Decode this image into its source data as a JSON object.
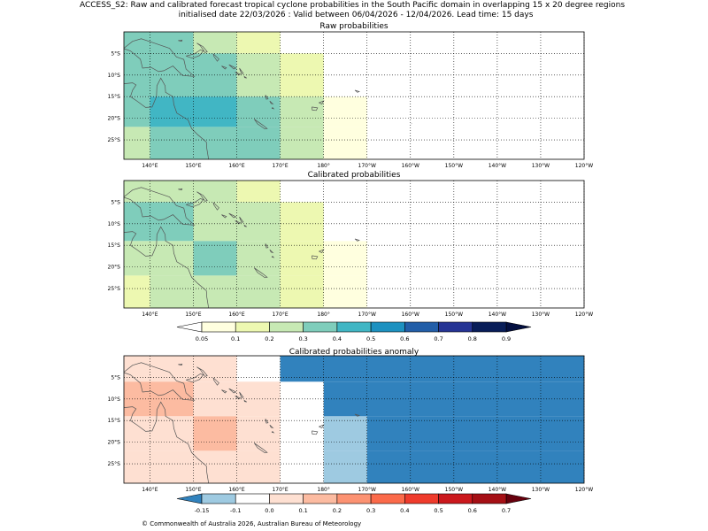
{
  "figure": {
    "title_line1": "ACCESS_S2: Raw and calibrated forecast tropical cyclone probabilities in the South Pacific domain in overlapping 15 x 20 degree regions",
    "title_line2": "initialised date 22/03/2026 :  Valid between 06/04/2026 - 12/04/2026. Lead time: 15 days",
    "copyright": "© Commonwealth of Australia 2026, Australian Bureau of Meteorology"
  },
  "axes": {
    "lon_ticks": [
      "140°E",
      "150°E",
      "160°E",
      "170°E",
      "180°",
      "170°W",
      "160°W",
      "150°W",
      "140°W",
      "130°W",
      "120°W"
    ],
    "lat_ticks": [
      "5°S",
      "10°S",
      "15°S",
      "20°S",
      "25°S"
    ],
    "lon_values": [
      140,
      150,
      160,
      170,
      180,
      190,
      200,
      210,
      220,
      230,
      240
    ],
    "lat_values": [
      -5,
      -10,
      -15,
      -20,
      -25
    ],
    "xlim": [
      134,
      240
    ],
    "ylim": [
      -29.5,
      0
    ],
    "grid": "dotted"
  },
  "chart_data": [
    {
      "type": "heatmap",
      "title": "Raw probabilities",
      "colorscale": "prob",
      "cells": [
        {
          "lon": [
            134,
            150
          ],
          "lat": [
            -10,
            0
          ],
          "value": 0.35
        },
        {
          "lon": [
            150,
            160
          ],
          "lat": [
            -10,
            0
          ],
          "value": 0.25
        },
        {
          "lon": [
            160,
            170
          ],
          "lat": [
            -5,
            0
          ],
          "value": 0.15
        },
        {
          "lon": [
            134,
            160
          ],
          "lat": [
            -15,
            -5
          ],
          "value": 0.35
        },
        {
          "lon": [
            160,
            170
          ],
          "lat": [
            -15,
            -5
          ],
          "value": 0.25
        },
        {
          "lon": [
            170,
            180
          ],
          "lat": [
            -15,
            -5
          ],
          "value": 0.15
        },
        {
          "lon": [
            134,
            140
          ],
          "lat": [
            -22,
            -15
          ],
          "value": 0.35
        },
        {
          "lon": [
            140,
            160
          ],
          "lat": [
            -22,
            -15
          ],
          "value": 0.45
        },
        {
          "lon": [
            160,
            170
          ],
          "lat": [
            -22,
            -15
          ],
          "value": 0.35
        },
        {
          "lon": [
            170,
            180
          ],
          "lat": [
            -22,
            -15
          ],
          "value": 0.25
        },
        {
          "lon": [
            180,
            190
          ],
          "lat": [
            -22,
            -15
          ],
          "value": 0.08
        },
        {
          "lon": [
            134,
            140
          ],
          "lat": [
            -29.5,
            -22
          ],
          "value": 0.25
        },
        {
          "lon": [
            140,
            170
          ],
          "lat": [
            -29.5,
            -22
          ],
          "value": 0.35
        },
        {
          "lon": [
            170,
            180
          ],
          "lat": [
            -29.5,
            -22
          ],
          "value": 0.25
        },
        {
          "lon": [
            180,
            190
          ],
          "lat": [
            -29.5,
            -22
          ],
          "value": 0.08
        }
      ]
    },
    {
      "type": "heatmap",
      "title": "Calibrated probabilities",
      "colorscale": "prob",
      "cells": [
        {
          "lon": [
            134,
            160
          ],
          "lat": [
            -5,
            0
          ],
          "value": 0.25
        },
        {
          "lon": [
            160,
            170
          ],
          "lat": [
            -5,
            0
          ],
          "value": 0.15
        },
        {
          "lon": [
            134,
            150
          ],
          "lat": [
            -14,
            -5
          ],
          "value": 0.35
        },
        {
          "lon": [
            150,
            170
          ],
          "lat": [
            -14,
            -5
          ],
          "value": 0.25
        },
        {
          "lon": [
            170,
            180
          ],
          "lat": [
            -14,
            -5
          ],
          "value": 0.15
        },
        {
          "lon": [
            134,
            150
          ],
          "lat": [
            -22,
            -14
          ],
          "value": 0.25
        },
        {
          "lon": [
            150,
            160
          ],
          "lat": [
            -22,
            -14
          ],
          "value": 0.35
        },
        {
          "lon": [
            160,
            170
          ],
          "lat": [
            -22,
            -14
          ],
          "value": 0.25
        },
        {
          "lon": [
            170,
            180
          ],
          "lat": [
            -22,
            -14
          ],
          "value": 0.15
        },
        {
          "lon": [
            180,
            190
          ],
          "lat": [
            -22,
            -14
          ],
          "value": 0.08
        },
        {
          "lon": [
            134,
            140
          ],
          "lat": [
            -29.5,
            -22
          ],
          "value": 0.15
        },
        {
          "lon": [
            140,
            170
          ],
          "lat": [
            -29.5,
            -22
          ],
          "value": 0.25
        },
        {
          "lon": [
            170,
            180
          ],
          "lat": [
            -29.5,
            -22
          ],
          "value": 0.15
        },
        {
          "lon": [
            180,
            190
          ],
          "lat": [
            -29.5,
            -22
          ],
          "value": 0.08
        }
      ]
    },
    {
      "type": "heatmap",
      "title": "Calibrated probabilities anomaly",
      "colorscale": "anom",
      "cells": [
        {
          "lon": [
            134,
            160
          ],
          "lat": [
            -6,
            0
          ],
          "value": 0.05
        },
        {
          "lon": [
            170,
            240
          ],
          "lat": [
            -6,
            0
          ],
          "value": -0.2
        },
        {
          "lon": [
            134,
            150
          ],
          "lat": [
            -14,
            -6
          ],
          "value": 0.15
        },
        {
          "lon": [
            150,
            170
          ],
          "lat": [
            -14,
            -6
          ],
          "value": 0.05
        },
        {
          "lon": [
            180,
            240
          ],
          "lat": [
            -14,
            -6
          ],
          "value": -0.2
        },
        {
          "lon": [
            134,
            150
          ],
          "lat": [
            -22,
            -14
          ],
          "value": 0.05
        },
        {
          "lon": [
            150,
            160
          ],
          "lat": [
            -22,
            -14
          ],
          "value": 0.15
        },
        {
          "lon": [
            160,
            170
          ],
          "lat": [
            -22,
            -14
          ],
          "value": 0.05
        },
        {
          "lon": [
            180,
            190
          ],
          "lat": [
            -22,
            -14
          ],
          "value": -0.12
        },
        {
          "lon": [
            190,
            240
          ],
          "lat": [
            -22,
            -14
          ],
          "value": -0.2
        },
        {
          "lon": [
            134,
            170
          ],
          "lat": [
            -29.5,
            -22
          ],
          "value": 0.05
        },
        {
          "lon": [
            180,
            190
          ],
          "lat": [
            -29.5,
            -22
          ],
          "value": -0.12
        },
        {
          "lon": [
            190,
            240
          ],
          "lat": [
            -29.5,
            -22
          ],
          "value": -0.2
        }
      ]
    }
  ],
  "colorbars": {
    "prob": {
      "bounds": [
        0.05,
        0.1,
        0.2,
        0.3,
        0.4,
        0.5,
        0.6,
        0.7,
        0.8,
        0.9
      ],
      "tick_labels": [
        "0.05",
        "0.1",
        "0.2",
        "0.3",
        "0.4",
        "0.5",
        "0.6",
        "0.7",
        "0.8",
        "0.9"
      ],
      "colors": [
        "#ffffdf",
        "#edf8b1",
        "#c7e9b4",
        "#7fcdbb",
        "#41b6c4",
        "#1d91c0",
        "#225ea8",
        "#253494",
        "#081d58"
      ],
      "under_color": "#ffffff",
      "over_color": "#030f40"
    },
    "anom": {
      "bounds": [
        -0.15,
        -0.1,
        0.0,
        0.1,
        0.2,
        0.3,
        0.4,
        0.5,
        0.6,
        0.7
      ],
      "tick_labels": [
        "-0.15",
        "-0.1",
        "0.0",
        "0.1",
        "0.2",
        "0.3",
        "0.4",
        "0.5",
        "0.6",
        "0.7"
      ],
      "colors": [
        "#9ecae1",
        "#ffffff",
        "#fee0d2",
        "#fcbba1",
        "#fc9272",
        "#fb6a4a",
        "#ef3b2c",
        "#cb181d",
        "#a50f15"
      ],
      "under_color": "#3182bd",
      "over_color": "#67000d"
    }
  }
}
